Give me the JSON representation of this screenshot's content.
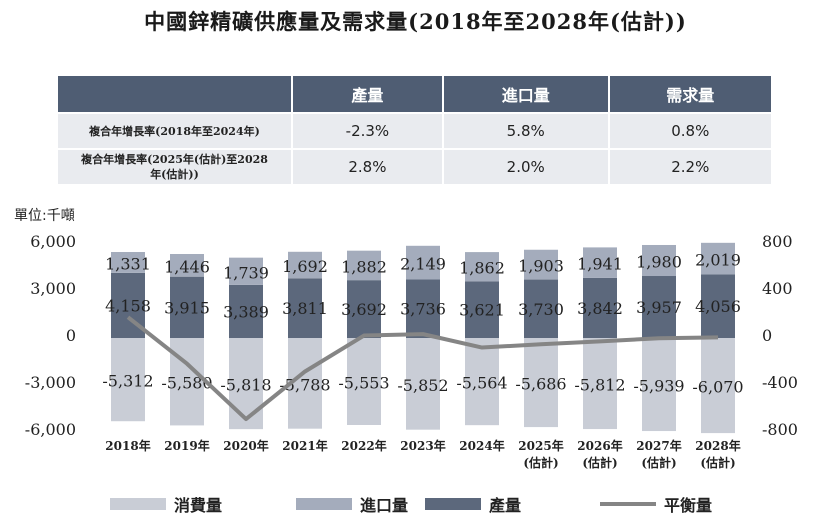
{
  "title": "中國鋅精礦供應量及需求量(2018年至2028年(估計))",
  "table": {
    "headers": [
      "",
      "產量",
      "進口量",
      "需求量"
    ],
    "rows": [
      {
        "label": "複合年增長率(2018年至2024年)",
        "values": [
          "-2.3%",
          "5.8%",
          "0.8%"
        ]
      },
      {
        "label": "複合年增長率(2025年(估計)至2028年(估計))",
        "values": [
          "2.8%",
          "2.0%",
          "2.2%"
        ]
      }
    ]
  },
  "unit_label": "單位:千噸",
  "legend": {
    "consumption": "消費量",
    "imports": "進口量",
    "production": "產量",
    "balance": "平衡量"
  },
  "colors": {
    "consumption": "#c9cdd6",
    "imports": "#a4acbc",
    "production": "#5c687c",
    "balance": "#858585",
    "header_bg": "#4f5d73"
  },
  "chart_data": {
    "type": "bar",
    "categories": [
      "2018年",
      "2019年",
      "2020年",
      "2021年",
      "2022年",
      "2023年",
      "2024年",
      "2025年",
      "2026年",
      "2027年",
      "2028年"
    ],
    "category_notes": [
      "",
      "",
      "",
      "",
      "",
      "",
      "",
      "(估計)",
      "(估計)",
      "(估計)",
      "(估計)"
    ],
    "series": [
      {
        "name": "產量",
        "values": [
          4158,
          3915,
          3389,
          3811,
          3692,
          3736,
          3621,
          3730,
          3842,
          3957,
          4056
        ]
      },
      {
        "name": "進口量",
        "values": [
          1331,
          1446,
          1739,
          1692,
          1882,
          2149,
          1862,
          1903,
          1941,
          1980,
          2019
        ]
      },
      {
        "name": "消費量",
        "values": [
          -5312,
          -5580,
          -5818,
          -5788,
          -5553,
          -5852,
          -5564,
          -5686,
          -5812,
          -5939,
          -6070
        ]
      },
      {
        "name": "平衡量",
        "axis": "right",
        "values": [
          177,
          -219,
          -690,
          -285,
          21,
          33,
          -81,
          -53,
          -29,
          -2,
          5
        ]
      }
    ],
    "left_ticks": [
      "6,000",
      "3,000",
      "0",
      "-3,000",
      "-6,000"
    ],
    "right_ticks": [
      "800",
      "400",
      "0",
      "-400",
      "-800"
    ],
    "ylim": [
      -6000,
      6000
    ],
    "y2lim": [
      -800,
      800
    ],
    "legend_position": "bottom",
    "grid": false
  }
}
